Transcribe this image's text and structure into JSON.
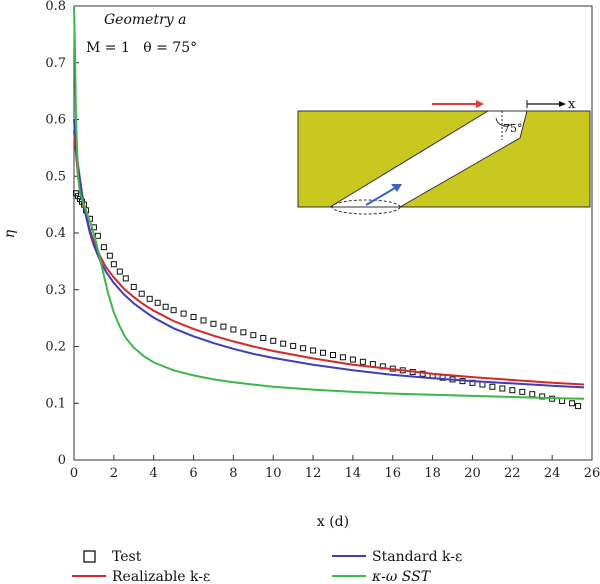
{
  "chart_data": {
    "type": "line",
    "xlabel": "x (d)",
    "ylabel": "η",
    "xlim": [
      0,
      26
    ],
    "ylim": [
      0,
      0.8
    ],
    "xticks": [
      0,
      2,
      4,
      6,
      8,
      10,
      12,
      14,
      16,
      18,
      20,
      22,
      24,
      26
    ],
    "yticks": [
      0,
      0.1,
      0.2,
      0.3,
      0.4,
      0.5,
      0.6,
      0.7,
      0.8
    ],
    "xtick_labels": [
      "0",
      "2",
      "4",
      "6",
      "8",
      "10",
      "12",
      "14",
      "16",
      "18",
      "20",
      "22",
      "24",
      "26"
    ],
    "ytick_labels": [
      "0",
      "0.1",
      "0.2",
      "0.3",
      "0.4",
      "0.5",
      "0.6",
      "0.7",
      "0.8"
    ],
    "grid": false,
    "annotations": {
      "geometry": "Geometry a",
      "params": "M = 1   θ = 75°",
      "inset_angle": "75°",
      "inset_axis": "x"
    },
    "legend": {
      "placement": "bottom",
      "entries": [
        {
          "label": "Test",
          "marker": "open-square",
          "color": "#111111"
        },
        {
          "label": "Realizable k-ε",
          "color": "#d62728"
        },
        {
          "label": "Standard k-ε",
          "color": "#3b3fbf"
        },
        {
          "label": "κ-ω SST",
          "color": "#3cb84a"
        }
      ]
    },
    "colors": {
      "inset_plate": "#c8c81e",
      "inset_red_arrow": "#e03a3a",
      "inset_blue_arrow": "#3a5fcf"
    },
    "series": [
      {
        "name": "Test",
        "kind": "scatter",
        "x": [
          0.1,
          0.2,
          0.3,
          0.4,
          0.5,
          0.6,
          0.8,
          1.0,
          1.2,
          1.5,
          1.8,
          2.0,
          2.3,
          2.6,
          3.0,
          3.4,
          3.8,
          4.2,
          4.6,
          5.0,
          5.5,
          6.0,
          6.5,
          7.0,
          7.5,
          8.0,
          8.5,
          9.0,
          9.5,
          10.0,
          10.5,
          11.0,
          11.5,
          12.0,
          12.5,
          13.0,
          13.5,
          14.0,
          14.5,
          15.0,
          15.5,
          16.0,
          16.5,
          17.0,
          17.5,
          18.0,
          18.5,
          19.0,
          19.5,
          20.0,
          20.5,
          21.0,
          21.5,
          22.0,
          22.5,
          23.0,
          23.5,
          24.0,
          24.5,
          25.0,
          25.3
        ],
        "y": [
          0.47,
          0.465,
          0.46,
          0.455,
          0.45,
          0.44,
          0.425,
          0.41,
          0.395,
          0.375,
          0.36,
          0.345,
          0.332,
          0.32,
          0.305,
          0.293,
          0.284,
          0.277,
          0.27,
          0.264,
          0.258,
          0.252,
          0.246,
          0.24,
          0.235,
          0.23,
          0.225,
          0.22,
          0.215,
          0.21,
          0.205,
          0.201,
          0.197,
          0.193,
          0.189,
          0.185,
          0.181,
          0.177,
          0.173,
          0.169,
          0.165,
          0.161,
          0.158,
          0.155,
          0.152,
          0.148,
          0.145,
          0.142,
          0.139,
          0.136,
          0.133,
          0.129,
          0.126,
          0.123,
          0.12,
          0.116,
          0.112,
          0.108,
          0.104,
          0.1,
          0.095
        ]
      },
      {
        "name": "Realizable k-ε",
        "kind": "line",
        "color": "#d62728",
        "x": [
          0.0,
          0.2,
          0.4,
          0.6,
          0.8,
          1.0,
          1.3,
          1.6,
          2.0,
          2.5,
          3.0,
          3.5,
          4.0,
          5.0,
          6.0,
          7.0,
          8.0,
          9.0,
          10.0,
          12.0,
          14.0,
          16.0,
          18.0,
          20.0,
          22.0,
          24.0,
          25.6
        ],
        "y": [
          0.58,
          0.5,
          0.46,
          0.43,
          0.405,
          0.385,
          0.36,
          0.34,
          0.322,
          0.302,
          0.287,
          0.274,
          0.263,
          0.245,
          0.231,
          0.219,
          0.209,
          0.2,
          0.192,
          0.179,
          0.168,
          0.16,
          0.152,
          0.146,
          0.141,
          0.136,
          0.133
        ]
      },
      {
        "name": "Standard k-ε",
        "kind": "line",
        "color": "#3b3fbf",
        "x": [
          0.0,
          0.2,
          0.4,
          0.6,
          0.8,
          1.0,
          1.3,
          1.6,
          2.0,
          2.5,
          3.0,
          3.5,
          4.0,
          5.0,
          6.0,
          7.0,
          8.0,
          9.0,
          10.0,
          12.0,
          14.0,
          16.0,
          18.0,
          20.0,
          22.0,
          24.0,
          25.6
        ],
        "y": [
          0.6,
          0.52,
          0.47,
          0.43,
          0.4,
          0.378,
          0.352,
          0.332,
          0.312,
          0.292,
          0.276,
          0.263,
          0.251,
          0.232,
          0.218,
          0.206,
          0.196,
          0.187,
          0.18,
          0.168,
          0.158,
          0.15,
          0.144,
          0.139,
          0.135,
          0.131,
          0.128
        ]
      },
      {
        "name": "κ-ω SST",
        "kind": "line",
        "color": "#3cb84a",
        "x": [
          0.0,
          0.05,
          0.1,
          0.2,
          0.3,
          0.5,
          0.7,
          0.9,
          1.1,
          1.3,
          1.5,
          1.7,
          2.0,
          2.3,
          2.6,
          3.0,
          3.5,
          4.0,
          5.0,
          6.0,
          7.0,
          8.0,
          10.0,
          12.0,
          14.0,
          16.0,
          18.0,
          20.0,
          22.0,
          24.0,
          25.6
        ],
        "y": [
          0.8,
          0.72,
          0.6,
          0.5,
          0.47,
          0.45,
          0.43,
          0.41,
          0.385,
          0.355,
          0.325,
          0.295,
          0.26,
          0.235,
          0.215,
          0.198,
          0.183,
          0.172,
          0.158,
          0.149,
          0.142,
          0.137,
          0.129,
          0.124,
          0.12,
          0.117,
          0.115,
          0.113,
          0.111,
          0.109,
          0.108
        ]
      }
    ]
  }
}
